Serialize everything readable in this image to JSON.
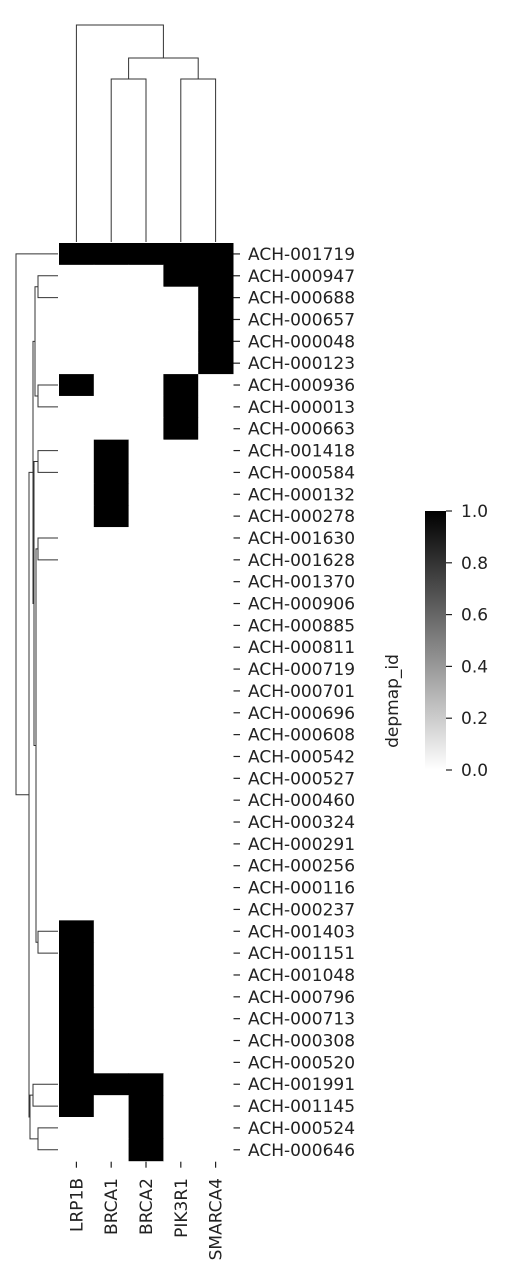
{
  "chart_data": {
    "type": "heatmap",
    "title": "",
    "xlabel": "",
    "ylabel": "",
    "columns": [
      "LRP1B",
      "BRCA1",
      "BRCA2",
      "PIK3R1",
      "SMARCA4"
    ],
    "rows": [
      "ACH-001719",
      "ACH-000947",
      "ACH-000688",
      "ACH-000657",
      "ACH-000048",
      "ACH-000123",
      "ACH-000936",
      "ACH-000013",
      "ACH-000663",
      "ACH-001418",
      "ACH-000584",
      "ACH-000132",
      "ACH-000278",
      "ACH-001630",
      "ACH-001628",
      "ACH-001370",
      "ACH-000906",
      "ACH-000885",
      "ACH-000811",
      "ACH-000719",
      "ACH-000701",
      "ACH-000696",
      "ACH-000608",
      "ACH-000542",
      "ACH-000527",
      "ACH-000460",
      "ACH-000324",
      "ACH-000291",
      "ACH-000256",
      "ACH-000116",
      "ACH-000237",
      "ACH-001403",
      "ACH-001151",
      "ACH-001048",
      "ACH-000796",
      "ACH-000713",
      "ACH-000308",
      "ACH-000520",
      "ACH-001991",
      "ACH-001145",
      "ACH-000524",
      "ACH-000646"
    ],
    "values": [
      [
        1,
        1,
        1,
        1,
        1
      ],
      [
        0,
        0,
        0,
        1,
        1
      ],
      [
        0,
        0,
        0,
        0,
        1
      ],
      [
        0,
        0,
        0,
        0,
        1
      ],
      [
        0,
        0,
        0,
        0,
        1
      ],
      [
        0,
        0,
        0,
        0,
        1
      ],
      [
        1,
        0,
        0,
        1,
        0
      ],
      [
        0,
        0,
        0,
        1,
        0
      ],
      [
        0,
        0,
        0,
        1,
        0
      ],
      [
        0,
        1,
        0,
        0,
        0
      ],
      [
        0,
        1,
        0,
        0,
        0
      ],
      [
        0,
        1,
        0,
        0,
        0
      ],
      [
        0,
        1,
        0,
        0,
        0
      ],
      [
        0,
        0,
        0,
        0,
        0
      ],
      [
        0,
        0,
        0,
        0,
        0
      ],
      [
        0,
        0,
        0,
        0,
        0
      ],
      [
        0,
        0,
        0,
        0,
        0
      ],
      [
        0,
        0,
        0,
        0,
        0
      ],
      [
        0,
        0,
        0,
        0,
        0
      ],
      [
        0,
        0,
        0,
        0,
        0
      ],
      [
        0,
        0,
        0,
        0,
        0
      ],
      [
        0,
        0,
        0,
        0,
        0
      ],
      [
        0,
        0,
        0,
        0,
        0
      ],
      [
        0,
        0,
        0,
        0,
        0
      ],
      [
        0,
        0,
        0,
        0,
        0
      ],
      [
        0,
        0,
        0,
        0,
        0
      ],
      [
        0,
        0,
        0,
        0,
        0
      ],
      [
        0,
        0,
        0,
        0,
        0
      ],
      [
        0,
        0,
        0,
        0,
        0
      ],
      [
        0,
        0,
        0,
        0,
        0
      ],
      [
        0,
        0,
        0,
        0,
        0
      ],
      [
        1,
        0,
        0,
        0,
        0
      ],
      [
        1,
        0,
        0,
        0,
        0
      ],
      [
        1,
        0,
        0,
        0,
        0
      ],
      [
        1,
        0,
        0,
        0,
        0
      ],
      [
        1,
        0,
        0,
        0,
        0
      ],
      [
        1,
        0,
        0,
        0,
        0
      ],
      [
        1,
        0,
        0,
        0,
        0
      ],
      [
        1,
        1,
        1,
        0,
        0
      ],
      [
        1,
        0,
        1,
        0,
        0
      ],
      [
        0,
        0,
        1,
        0,
        0
      ],
      [
        0,
        0,
        1,
        0,
        0
      ]
    ],
    "colorbar": {
      "label": "depmap_id",
      "range": [
        0.0,
        1.0
      ],
      "ticks": [
        "0.0",
        "0.2",
        "0.4",
        "0.6",
        "0.8",
        "1.0"
      ],
      "colors": [
        "#ffffff",
        "#000000"
      ]
    },
    "row_dendrogram": true,
    "column_dendrogram": true,
    "colors": {
      "cell_on": "#000000",
      "cell_off": "#ffffff",
      "dendrogram": "#333333"
    }
  }
}
